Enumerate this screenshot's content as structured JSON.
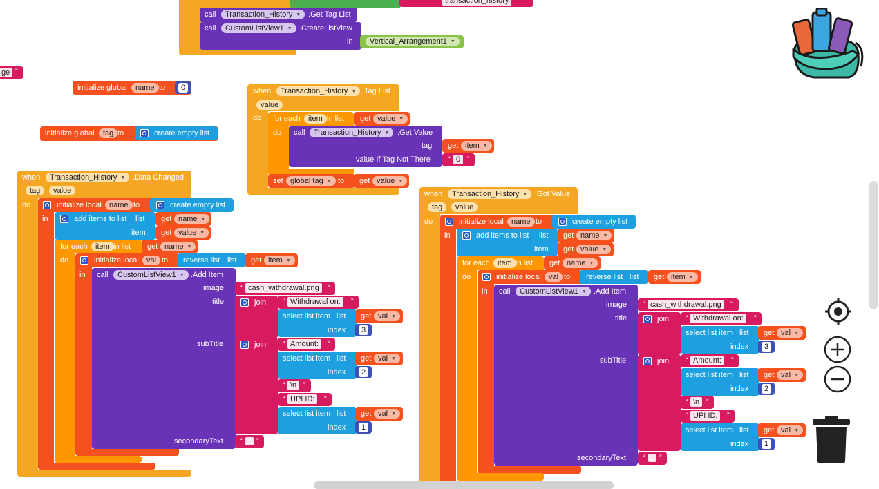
{
  "workspace": {
    "top_fragment": {
      "call_label": "call",
      "component1": "Transaction_History",
      "method1": ".Get Tag List",
      "component2": "CustomListView1",
      "method2": ".CreateListView",
      "in_label": "in",
      "arg": "Vertical_Arrangement1",
      "fragment_text": "transaction_history"
    },
    "left_edge_text": "ge",
    "init_global_name": {
      "label": "initialize global",
      "var": "name",
      "to": "to",
      "value": "0"
    },
    "init_global_tag": {
      "label": "initialize global",
      "var": "tag",
      "to": "to",
      "value_label": "create empty list"
    },
    "tag_list_event": {
      "when": "when",
      "component": "Transaction_History",
      "event": ".Tag List",
      "param": "value",
      "do": "do",
      "for_each": "for each",
      "item": "item",
      "in_list": "in list",
      "get": "get",
      "get_var": "value",
      "call": "call",
      "get_value": ".Get Value",
      "tag_label": "tag",
      "get_item": "item",
      "if_not_there": "value If Tag Not There",
      "zero": "0",
      "set": "set",
      "set_var": "global tag",
      "to": "to",
      "set_value": "value"
    },
    "data_changed_event": {
      "when": "when",
      "component": "Transaction_History",
      "event": ".Data Changed",
      "param1": "tag",
      "param2": "value",
      "do": "do",
      "in": "in",
      "init_local": "initialize local",
      "local_var": "name",
      "to": "to",
      "create_empty_list": "create empty list",
      "add_items": "add items to list",
      "list_label": "list",
      "item_label": "item",
      "get": "get",
      "get_name": "name",
      "get_value": "value",
      "for_each": "for each",
      "item": "item",
      "in_list": "in list",
      "init_local_val": "initialize local",
      "val_var": "val",
      "reverse_list": "reverse list",
      "get_item": "item",
      "call": "call",
      "listview": "CustomListView1",
      "add_item": ".Add Item",
      "image_label": "image",
      "image_value": "cash_withdrawal.png",
      "title_label": "title",
      "join": "join",
      "withdrawal_on": "Withdrawal on:",
      "select_list_item": "select list item",
      "index_label": "index",
      "get_val": "val",
      "idx3": "3",
      "subtitle_label": "subTitle",
      "amount": "Amount:",
      "idx2": "2",
      "newline": "\\n",
      "upi_id": "UPI ID:",
      "idx1": "1",
      "secondary_label": "secondaryText"
    },
    "got_value_event": {
      "when": "when",
      "component": "Transaction_History",
      "event": ".Got Value",
      "param1": "tag",
      "param2": "value"
    }
  },
  "controls": {
    "backpack": "backpack-icon",
    "center": "center-target-icon",
    "zoom_in": "zoom-in-icon",
    "zoom_out": "zoom-out-icon",
    "trash": "trash-icon"
  },
  "colors": {
    "event": "#f5a623",
    "procedure": "#6933b8",
    "variable": "#f4511e",
    "list": "#1d9fe0",
    "text": "#d81b60",
    "math": "#3f51b5",
    "component": "#8bc34a"
  }
}
